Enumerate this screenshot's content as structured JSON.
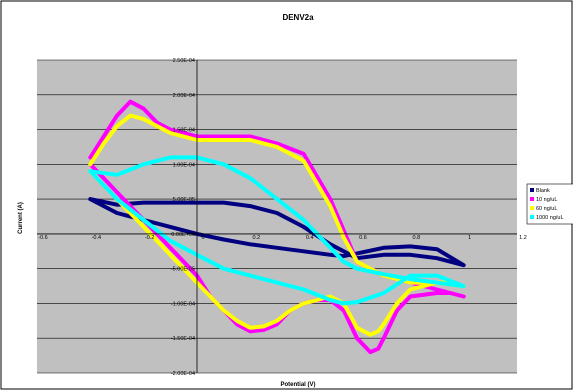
{
  "chart_data": {
    "type": "line",
    "title": "DENV2a",
    "xlabel": "Potential (V)",
    "ylabel": "Current (A)",
    "xlim": [
      -0.6,
      1.2
    ],
    "ylim": [
      -0.0002,
      0.00025
    ],
    "x_ticks": [
      -0.6,
      -0.4,
      -0.2,
      0,
      0.2,
      0.4,
      0.6,
      0.8,
      1,
      1.2
    ],
    "x_tick_labels": [
      "-0.6",
      "-0.4",
      "-0.2",
      "0",
      "0.2",
      "0.4",
      "0.6",
      "0.8",
      "1",
      "1.2"
    ],
    "y_ticks": [
      -0.0002,
      -0.00015,
      -0.0001,
      -5e-05,
      0,
      5e-05,
      0.0001,
      0.00015,
      0.0002,
      0.00025
    ],
    "y_tick_labels": [
      "-2.00E-04",
      "-1.50E-04",
      "-1.00E-04",
      "-5.00E-05",
      "0.00E+00",
      "5.00E-05",
      "1.00E-04",
      "1.50E-04",
      "2.00E-04",
      "2.50E-04"
    ],
    "grid": true,
    "legend_position": "right",
    "plot_background": "#c0c0c0",
    "series": [
      {
        "name": "Blank",
        "color": "#000080",
        "x": [
          -0.4,
          -0.3,
          -0.2,
          -0.1,
          0,
          0.1,
          0.2,
          0.3,
          0.4,
          0.5,
          0.55,
          0.6,
          0.7,
          0.8,
          0.9,
          1.0,
          0.9,
          0.8,
          0.7,
          0.6,
          0.5,
          0.4,
          0.3,
          0.2,
          0.1,
          0,
          -0.1,
          -0.2,
          -0.3,
          -0.4
        ],
        "y": [
          5e-05,
          3e-05,
          2e-05,
          1e-05,
          0,
          -8e-06,
          -1.5e-05,
          -2e-05,
          -2.5e-05,
          -3e-05,
          -3.2e-05,
          -2.8e-05,
          -2e-05,
          -1.8e-05,
          -2.2e-05,
          -4.5e-05,
          -3.5e-05,
          -3e-05,
          -3e-05,
          -3.5e-05,
          -1.5e-05,
          1e-05,
          3e-05,
          4e-05,
          4.5e-05,
          4.5e-05,
          4.5e-05,
          4.5e-05,
          4.2e-05,
          5e-05
        ]
      },
      {
        "name": "10 ng/uL",
        "color": "#ff00ff",
        "x": [
          -0.4,
          -0.35,
          -0.3,
          -0.25,
          -0.2,
          -0.15,
          -0.1,
          -0.05,
          0,
          0.1,
          0.2,
          0.3,
          0.4,
          0.5,
          0.55,
          0.6,
          0.7,
          0.8,
          0.9,
          1.0,
          0.95,
          0.9,
          0.8,
          0.75,
          0.7,
          0.68,
          0.65,
          0.6,
          0.55,
          0.5,
          0.45,
          0.4,
          0.35,
          0.3,
          0.25,
          0.2,
          0.15,
          0.1,
          0.05,
          0,
          -0.05,
          -0.1,
          -0.15,
          -0.2,
          -0.25,
          -0.3,
          -0.35,
          -0.4
        ],
        "y": [
          0.00011,
          0.00014,
          0.00017,
          0.00019,
          0.00018,
          0.00016,
          0.00015,
          0.000145,
          0.00014,
          0.00014,
          0.00014,
          0.00013,
          0.000115,
          5e-05,
          5e-06,
          -4e-05,
          -6e-05,
          -7e-05,
          -8e-05,
          -9e-05,
          -8.5e-05,
          -8.5e-05,
          -9e-05,
          -0.00011,
          -0.00015,
          -0.000165,
          -0.00017,
          -0.00015,
          -0.00011,
          -9.5e-05,
          -9.5e-05,
          -0.0001,
          -0.00011,
          -0.00013,
          -0.000138,
          -0.00014,
          -0.00013,
          -0.00011,
          -9e-05,
          -6e-05,
          -4e-05,
          -2e-05,
          0,
          2e-05,
          4e-05,
          6e-05,
          8e-05,
          0.0001
        ]
      },
      {
        "name": "60 ng/uL",
        "color": "#ffff00",
        "x": [
          -0.4,
          -0.35,
          -0.3,
          -0.25,
          -0.2,
          -0.15,
          -0.1,
          -0.05,
          0,
          0.1,
          0.2,
          0.3,
          0.4,
          0.5,
          0.55,
          0.6,
          0.7,
          0.8,
          0.9,
          1.0,
          0.95,
          0.9,
          0.8,
          0.75,
          0.7,
          0.68,
          0.65,
          0.6,
          0.55,
          0.5,
          0.45,
          0.4,
          0.35,
          0.3,
          0.25,
          0.2,
          0.15,
          0.1,
          0.05,
          0,
          -0.05,
          -0.1,
          -0.15,
          -0.2,
          -0.25,
          -0.3,
          -0.35,
          -0.4
        ],
        "y": [
          0.0001,
          0.00013,
          0.000155,
          0.00017,
          0.000165,
          0.000155,
          0.000145,
          0.00014,
          0.000135,
          0.000135,
          0.000135,
          0.000125,
          0.000105,
          4e-05,
          -5e-06,
          -4e-05,
          -6e-05,
          -7e-05,
          -7e-05,
          -7.5e-05,
          -7e-05,
          -7e-05,
          -8e-05,
          -0.0001,
          -0.00013,
          -0.00014,
          -0.000145,
          -0.000135,
          -0.0001,
          -9e-05,
          -9.5e-05,
          -0.0001,
          -0.00011,
          -0.000125,
          -0.000133,
          -0.000135,
          -0.000125,
          -0.00011,
          -9e-05,
          -7e-05,
          -5e-05,
          -3e-05,
          -1e-05,
          1e-05,
          3e-05,
          5e-05,
          7e-05,
          9e-05
        ]
      },
      {
        "name": "1000 ng/uL",
        "color": "#00ffff",
        "x": [
          -0.4,
          -0.3,
          -0.2,
          -0.1,
          0,
          0.1,
          0.2,
          0.3,
          0.4,
          0.5,
          0.55,
          0.6,
          0.7,
          0.8,
          0.9,
          1.0,
          0.9,
          0.8,
          0.7,
          0.6,
          0.55,
          0.5,
          0.4,
          0.3,
          0.2,
          0.1,
          0,
          -0.1,
          -0.2,
          -0.3,
          -0.4
        ],
        "y": [
          9e-05,
          8.5e-05,
          0.0001,
          0.00011,
          0.00011,
          0.0001,
          8e-05,
          5e-05,
          2e-05,
          -2e-05,
          -4e-05,
          -5e-05,
          -5.8e-05,
          -6.5e-05,
          -7e-05,
          -7.5e-05,
          -6e-05,
          -6e-05,
          -8.5e-05,
          -9.8e-05,
          -0.0001,
          -9.5e-05,
          -8e-05,
          -7e-05,
          -6e-05,
          -5e-05,
          -3e-05,
          -1e-05,
          2e-05,
          5e-05,
          9e-05
        ]
      }
    ]
  }
}
